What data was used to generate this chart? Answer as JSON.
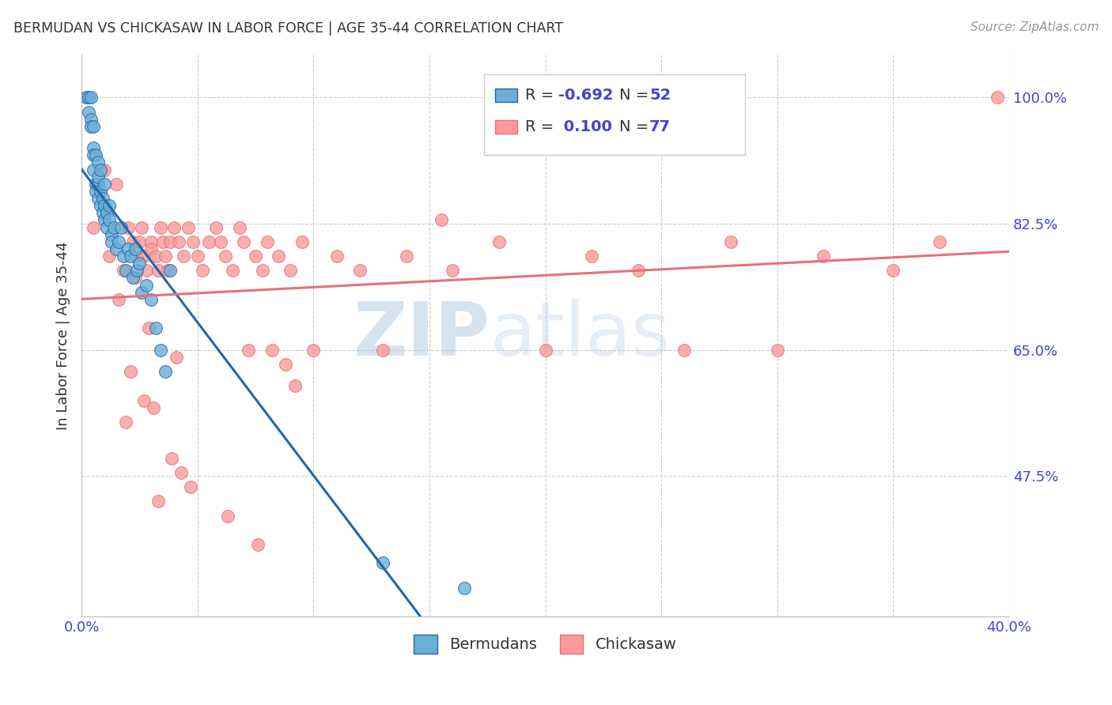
{
  "title": "BERMUDAN VS CHICKASAW IN LABOR FORCE | AGE 35-44 CORRELATION CHART",
  "source": "Source: ZipAtlas.com",
  "ylabel": "In Labor Force | Age 35-44",
  "ytick_labels": [
    "100.0%",
    "82.5%",
    "65.0%",
    "47.5%"
  ],
  "ytick_values": [
    1.0,
    0.825,
    0.65,
    0.475
  ],
  "xmin": 0.0,
  "xmax": 0.4,
  "ymin": 0.28,
  "ymax": 1.06,
  "bermudan_color": "#6baed6",
  "chickasaw_color": "#fb9a99",
  "bermudan_line_color": "#2166ac",
  "chickasaw_line_color": "#e8707a",
  "legend_label_1": "Bermudans",
  "legend_label_2": "Chickasaw",
  "watermark_zip": "ZIP",
  "watermark_atlas": "atlas",
  "title_color": "#333333",
  "axis_color": "#4444cc",
  "grid_color": "#cccccc",
  "bermudan_x": [
    0.002,
    0.003,
    0.003,
    0.004,
    0.004,
    0.004,
    0.005,
    0.005,
    0.005,
    0.005,
    0.006,
    0.006,
    0.006,
    0.007,
    0.007,
    0.007,
    0.007,
    0.008,
    0.008,
    0.008,
    0.009,
    0.009,
    0.01,
    0.01,
    0.01,
    0.011,
    0.011,
    0.012,
    0.012,
    0.013,
    0.013,
    0.014,
    0.015,
    0.016,
    0.017,
    0.018,
    0.019,
    0.02,
    0.021,
    0.022,
    0.023,
    0.024,
    0.025,
    0.026,
    0.028,
    0.03,
    0.032,
    0.034,
    0.036,
    0.038,
    0.13,
    0.165
  ],
  "bermudan_y": [
    1.0,
    1.0,
    0.98,
    1.0,
    0.97,
    0.96,
    0.93,
    0.92,
    0.9,
    0.96,
    0.88,
    0.87,
    0.92,
    0.88,
    0.86,
    0.91,
    0.89,
    0.85,
    0.87,
    0.9,
    0.86,
    0.84,
    0.85,
    0.83,
    0.88,
    0.82,
    0.84,
    0.83,
    0.85,
    0.81,
    0.8,
    0.82,
    0.79,
    0.8,
    0.82,
    0.78,
    0.76,
    0.79,
    0.78,
    0.75,
    0.79,
    0.76,
    0.77,
    0.73,
    0.74,
    0.72,
    0.68,
    0.65,
    0.62,
    0.76,
    0.355,
    0.32
  ],
  "chickasaw_x": [
    0.005,
    0.01,
    0.012,
    0.018,
    0.02,
    0.022,
    0.024,
    0.025,
    0.026,
    0.027,
    0.028,
    0.03,
    0.03,
    0.032,
    0.033,
    0.034,
    0.035,
    0.036,
    0.037,
    0.038,
    0.04,
    0.042,
    0.044,
    0.046,
    0.048,
    0.05,
    0.052,
    0.055,
    0.058,
    0.06,
    0.062,
    0.065,
    0.068,
    0.07,
    0.072,
    0.075,
    0.078,
    0.08,
    0.082,
    0.085,
    0.088,
    0.09,
    0.095,
    0.1,
    0.11,
    0.12,
    0.13,
    0.14,
    0.16,
    0.18,
    0.2,
    0.22,
    0.24,
    0.26,
    0.28,
    0.3,
    0.32,
    0.35,
    0.37,
    0.015,
    0.016,
    0.019,
    0.021,
    0.023,
    0.027,
    0.029,
    0.031,
    0.033,
    0.039,
    0.041,
    0.043,
    0.047,
    0.063,
    0.076,
    0.092,
    0.395,
    0.155
  ],
  "chickasaw_y": [
    0.82,
    0.9,
    0.78,
    0.76,
    0.82,
    0.8,
    0.78,
    0.8,
    0.82,
    0.78,
    0.76,
    0.8,
    0.79,
    0.78,
    0.76,
    0.82,
    0.8,
    0.78,
    0.76,
    0.8,
    0.82,
    0.8,
    0.78,
    0.82,
    0.8,
    0.78,
    0.76,
    0.8,
    0.82,
    0.8,
    0.78,
    0.76,
    0.82,
    0.8,
    0.65,
    0.78,
    0.76,
    0.8,
    0.65,
    0.78,
    0.63,
    0.76,
    0.8,
    0.65,
    0.78,
    0.76,
    0.65,
    0.78,
    0.76,
    0.8,
    0.65,
    0.78,
    0.76,
    0.65,
    0.8,
    0.65,
    0.78,
    0.76,
    0.8,
    0.88,
    0.72,
    0.55,
    0.62,
    0.75,
    0.58,
    0.68,
    0.57,
    0.44,
    0.5,
    0.64,
    0.48,
    0.46,
    0.42,
    0.38,
    0.6,
    1.0,
    0.83
  ]
}
